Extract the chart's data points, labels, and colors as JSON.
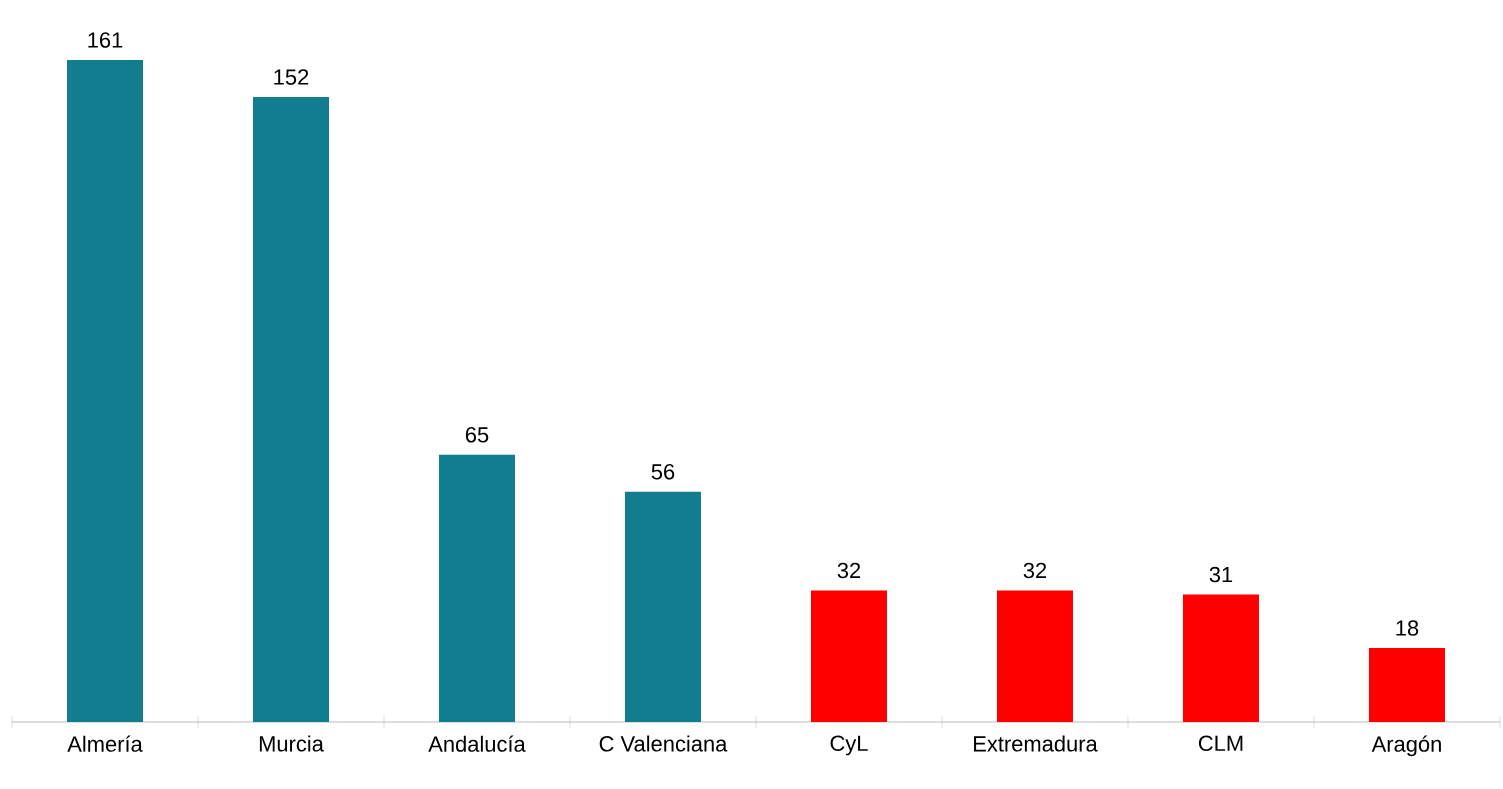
{
  "chart_data": {
    "type": "bar",
    "categories": [
      "Almería",
      "Murcia",
      "Andalucía",
      "C Valenciana",
      "CyL",
      "Extremadura",
      "CLM",
      "Aragón"
    ],
    "values": [
      161,
      152,
      65,
      56,
      32,
      32,
      31,
      18
    ],
    "colors": [
      "#127d8f",
      "#127d8f",
      "#127d8f",
      "#127d8f",
      "#ff0000",
      "#ff0000",
      "#ff0000",
      "#ff0000"
    ],
    "data_labels": true
  }
}
